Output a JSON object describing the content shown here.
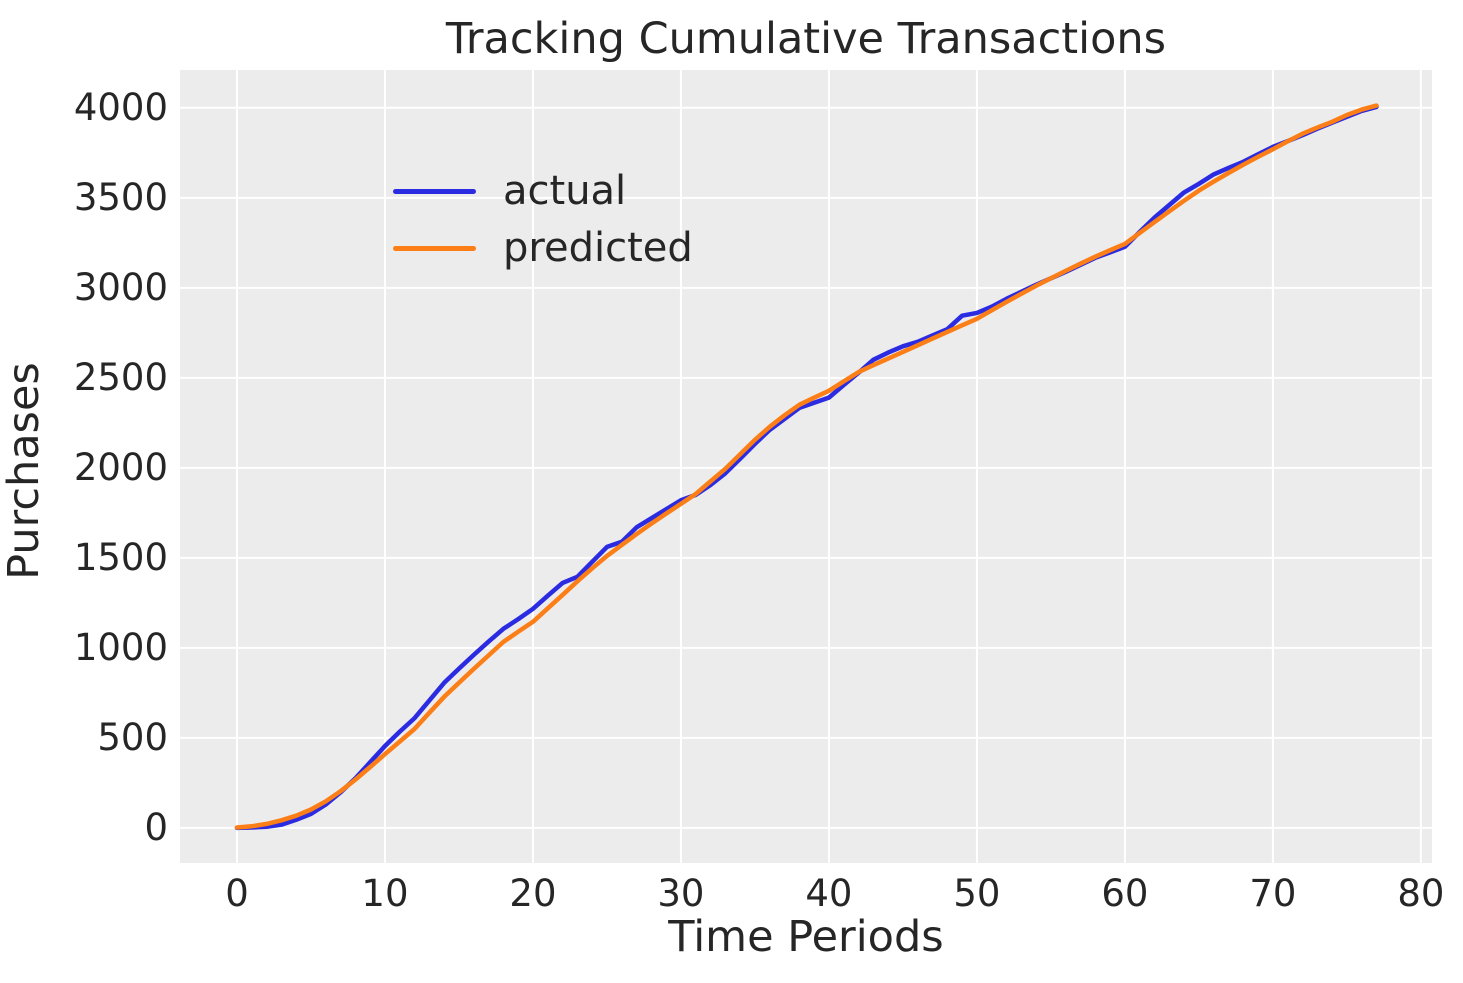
{
  "figure": {
    "title": "Tracking Cumulative Transactions",
    "background_color": "#ffffff",
    "text_color": "#262626"
  },
  "chart_data": {
    "type": "line",
    "title": "Tracking Cumulative Transactions",
    "xlabel": "Time Periods",
    "ylabel": "Purchases",
    "grid": true,
    "plot_background_color": "#ececec",
    "grid_color": "#ffffff",
    "legend_position": "upper-left",
    "legend_frame": false,
    "xlim": [
      -3.85,
      80.75
    ],
    "ylim": [
      -195,
      4210
    ],
    "xticks": [
      0,
      10,
      20,
      30,
      40,
      50,
      60,
      70,
      80
    ],
    "yticks": [
      0,
      500,
      1000,
      1500,
      2000,
      2500,
      3000,
      3500,
      4000
    ],
    "line_width": 4.5,
    "x": [
      0,
      1,
      2,
      3,
      4,
      5,
      6,
      7,
      8,
      9,
      10,
      11,
      12,
      13,
      14,
      15,
      16,
      17,
      18,
      19,
      20,
      21,
      22,
      23,
      24,
      25,
      26,
      27,
      28,
      29,
      30,
      31,
      32,
      33,
      34,
      35,
      36,
      37,
      38,
      39,
      40,
      41,
      42,
      43,
      44,
      45,
      46,
      47,
      48,
      49,
      50,
      51,
      52,
      53,
      54,
      55,
      56,
      57,
      58,
      59,
      60,
      61,
      62,
      63,
      64,
      65,
      66,
      67,
      68,
      69,
      70,
      71,
      72,
      73,
      74,
      75,
      76,
      77
    ],
    "series": [
      {
        "name": "actual",
        "color": "#2b2be1",
        "values": [
          0,
          2,
          6,
          18,
          45,
          78,
          130,
          198,
          275,
          365,
          455,
          535,
          610,
          708,
          806,
          885,
          961,
          1035,
          1106,
          1160,
          1217,
          1290,
          1361,
          1395,
          1478,
          1561,
          1589,
          1670,
          1720,
          1770,
          1820,
          1850,
          1905,
          1970,
          2050,
          2133,
          2211,
          2272,
          2333,
          2362,
          2390,
          2460,
          2528,
          2600,
          2640,
          2675,
          2700,
          2735,
          2770,
          2845,
          2861,
          2895,
          2939,
          2978,
          3017,
          3053,
          3089,
          3128,
          3167,
          3197,
          3228,
          3310,
          3390,
          3460,
          3530,
          3578,
          3630,
          3666,
          3700,
          3742,
          3783,
          3815,
          3848,
          3884,
          3917,
          3950,
          3983,
          4005
        ]
      },
      {
        "name": "predicted",
        "color": "#fb7e17",
        "values": [
          2,
          9,
          22,
          42,
          68,
          102,
          148,
          204,
          268,
          338,
          410,
          480,
          550,
          640,
          728,
          806,
          883,
          958,
          1033,
          1090,
          1145,
          1220,
          1294,
          1370,
          1442,
          1511,
          1572,
          1632,
          1690,
          1746,
          1800,
          1855,
          1925,
          1995,
          2075,
          2156,
          2228,
          2292,
          2350,
          2390,
          2428,
          2480,
          2532,
          2570,
          2607,
          2644,
          2681,
          2718,
          2755,
          2792,
          2828,
          2875,
          2922,
          2967,
          3011,
          3053,
          3094,
          3134,
          3173,
          3209,
          3244,
          3305,
          3365,
          3425,
          3484,
          3540,
          3590,
          3638,
          3684,
          3728,
          3770,
          3814,
          3856,
          3890,
          3922,
          3960,
          3990,
          4012
        ]
      }
    ]
  }
}
